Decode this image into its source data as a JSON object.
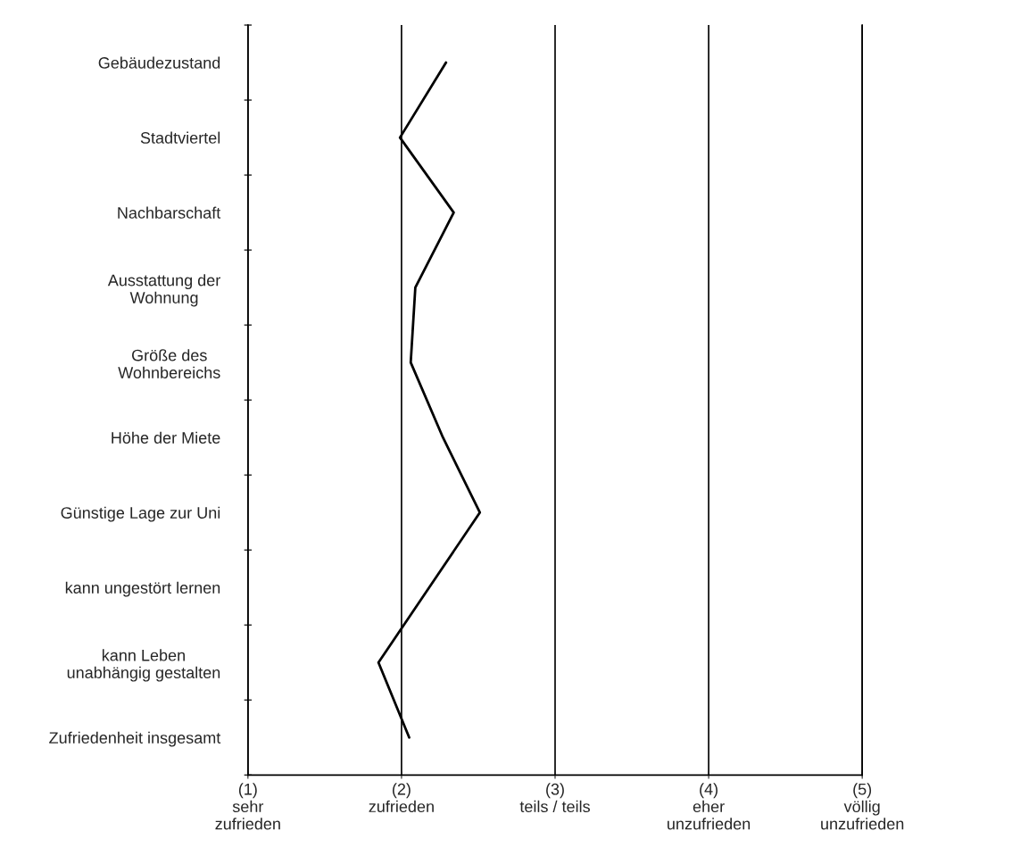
{
  "chart_data": {
    "type": "line",
    "orientation": "horizontal",
    "categories": [
      "Gebäudezustand",
      "Stadtviertel",
      "Nachbarschaft",
      "Ausstattung der\nWohnung",
      "Größe des\nWohnbereichs",
      "Höhe der Miete",
      "Günstige Lage zur Uni",
      "kann ungestört lernen",
      "kann Leben\nunabhängig gestalten",
      "Zufriedenheit insgesamt"
    ],
    "series": [
      {
        "color": "#000000",
        "values": [
          2.29,
          1.99,
          2.34,
          2.09,
          2.06,
          2.27,
          2.51,
          2.18,
          1.85,
          2.05
        ]
      }
    ],
    "xlim": [
      1,
      5
    ],
    "xticks": [
      {
        "value": 1,
        "label": "(1)\nsehr\nzufrieden"
      },
      {
        "value": 2,
        "label": "(2)\nzufrieden"
      },
      {
        "value": 3,
        "label": "(3)\nteils / teils"
      },
      {
        "value": 4,
        "label": "(4)\neher\nunzufrieden"
      },
      {
        "value": 5,
        "label": "(5)\nvöllig\nunzufrieden"
      }
    ],
    "grid": "x",
    "marker": "none",
    "line_style": "solid",
    "legend": false
  }
}
